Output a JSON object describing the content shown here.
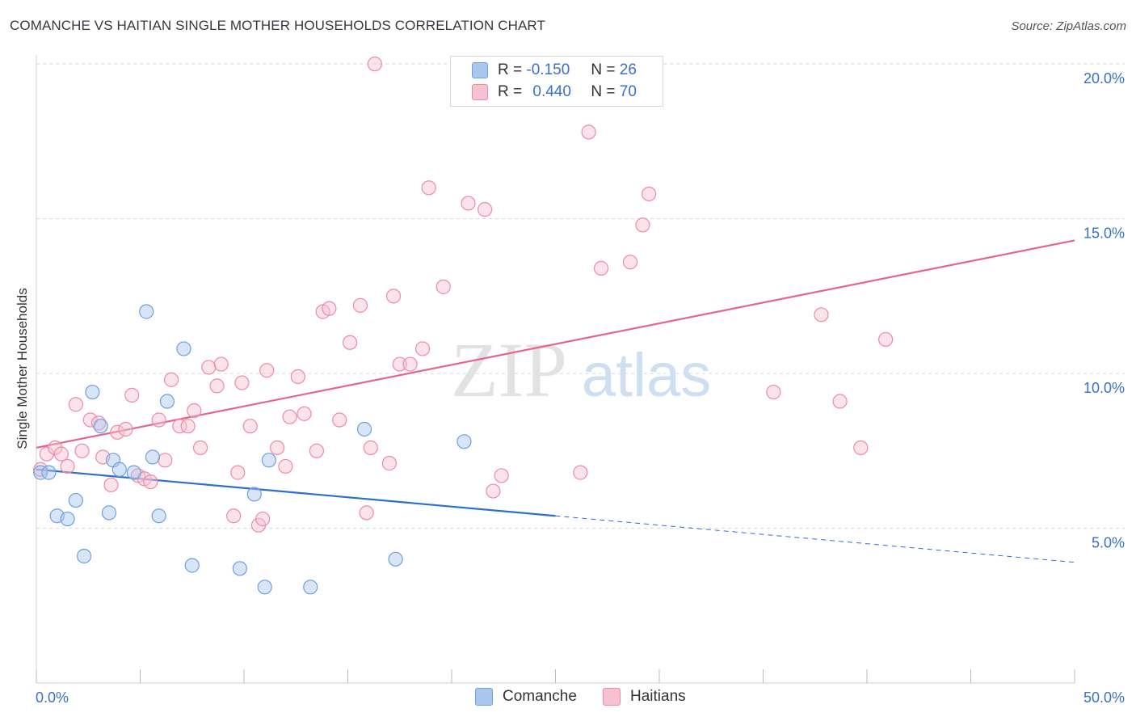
{
  "title": "COMANCHE VS HAITIAN SINGLE MOTHER HOUSEHOLDS CORRELATION CHART",
  "source": "Source: ZipAtlas.com",
  "watermark": {
    "zip": "ZIP",
    "atlas": "atlas"
  },
  "legend": {
    "r_label": "R =",
    "n_label": "N =",
    "comanche": {
      "r": "-0.150",
      "n": "26"
    },
    "haitians": {
      "r": "0.440",
      "n": "70"
    }
  },
  "colors": {
    "comanche": "#6e9fe0",
    "comanche_fill": "#a9c6ee",
    "comanche_line": "#2b6fcf",
    "haitians": "#ee8aa8",
    "haitians_fill": "#f6c1d1",
    "haitians_line": "#e26590",
    "axis_text": "#3a6fcf",
    "grid": "#d9d9d9"
  },
  "chart_data": {
    "type": "scatter",
    "title": "COMANCHE VS HAITIAN SINGLE MOTHER HOUSEHOLDS CORRELATION CHART",
    "xlabel": "",
    "ylabel": "Single Mother Households",
    "xlim": [
      0,
      50
    ],
    "ylim": [
      0,
      20.5
    ],
    "x_tick_labels": [
      "0.0%",
      "50.0%"
    ],
    "y_ticks": [
      5,
      10,
      15,
      20
    ],
    "y_tick_labels": [
      "5.0%",
      "10.0%",
      "15.0%",
      "20.0%"
    ],
    "legend_position": "top-center",
    "series": [
      {
        "name": "Comanche",
        "r": -0.15,
        "n": 26,
        "points": [
          [
            0.2,
            6.8
          ],
          [
            0.6,
            6.8
          ],
          [
            1.0,
            5.4
          ],
          [
            1.5,
            5.3
          ],
          [
            1.9,
            5.9
          ],
          [
            2.3,
            4.1
          ],
          [
            2.7,
            9.4
          ],
          [
            3.1,
            8.3
          ],
          [
            3.7,
            7.2
          ],
          [
            4.0,
            6.9
          ],
          [
            3.5,
            5.5
          ],
          [
            4.7,
            6.8
          ],
          [
            5.3,
            12.0
          ],
          [
            5.6,
            7.3
          ],
          [
            5.9,
            5.4
          ],
          [
            6.3,
            9.1
          ],
          [
            7.1,
            10.8
          ],
          [
            7.5,
            3.8
          ],
          [
            9.8,
            3.7
          ],
          [
            10.5,
            6.1
          ],
          [
            11.2,
            7.2
          ],
          [
            11.0,
            3.1
          ],
          [
            13.2,
            3.1
          ],
          [
            15.8,
            8.2
          ],
          [
            17.3,
            4.0
          ],
          [
            20.6,
            7.8
          ]
        ],
        "trend": {
          "x_start": 0,
          "y_start": 6.9,
          "x_solid_end": 25,
          "y_solid_end": 5.4,
          "x_end": 50,
          "y_end": 3.9
        }
      },
      {
        "name": "Haitians",
        "r": 0.44,
        "n": 70,
        "points": [
          [
            0.2,
            6.9
          ],
          [
            0.5,
            7.4
          ],
          [
            0.9,
            7.6
          ],
          [
            1.2,
            7.4
          ],
          [
            1.5,
            7.0
          ],
          [
            1.9,
            9.0
          ],
          [
            2.2,
            7.5
          ],
          [
            2.6,
            8.5
          ],
          [
            3.0,
            8.4
          ],
          [
            3.2,
            7.3
          ],
          [
            3.6,
            6.4
          ],
          [
            3.9,
            8.1
          ],
          [
            4.3,
            8.2
          ],
          [
            4.6,
            9.3
          ],
          [
            4.9,
            6.7
          ],
          [
            5.2,
            6.6
          ],
          [
            5.5,
            6.5
          ],
          [
            5.9,
            8.5
          ],
          [
            6.2,
            7.2
          ],
          [
            6.5,
            9.8
          ],
          [
            6.9,
            8.3
          ],
          [
            7.3,
            8.3
          ],
          [
            7.6,
            8.8
          ],
          [
            7.9,
            7.6
          ],
          [
            8.3,
            10.2
          ],
          [
            8.7,
            9.6
          ],
          [
            8.9,
            10.3
          ],
          [
            9.5,
            5.4
          ],
          [
            9.7,
            6.8
          ],
          [
            9.9,
            9.7
          ],
          [
            10.3,
            8.3
          ],
          [
            10.7,
            5.1
          ],
          [
            10.9,
            5.3
          ],
          [
            11.1,
            10.1
          ],
          [
            11.6,
            7.6
          ],
          [
            12.0,
            7.0
          ],
          [
            12.2,
            8.6
          ],
          [
            12.6,
            9.9
          ],
          [
            12.9,
            8.7
          ],
          [
            13.5,
            7.5
          ],
          [
            13.8,
            12.0
          ],
          [
            14.1,
            12.1
          ],
          [
            14.6,
            8.5
          ],
          [
            15.1,
            11.0
          ],
          [
            15.6,
            12.2
          ],
          [
            15.9,
            5.5
          ],
          [
            16.1,
            7.6
          ],
          [
            16.3,
            20.0
          ],
          [
            17.0,
            7.1
          ],
          [
            17.2,
            12.5
          ],
          [
            17.5,
            10.3
          ],
          [
            18.0,
            10.3
          ],
          [
            18.6,
            10.8
          ],
          [
            18.9,
            16.0
          ],
          [
            19.6,
            12.8
          ],
          [
            20.8,
            15.5
          ],
          [
            21.6,
            15.3
          ],
          [
            22.0,
            6.2
          ],
          [
            22.4,
            6.7
          ],
          [
            26.2,
            6.8
          ],
          [
            26.6,
            17.8
          ],
          [
            27.2,
            13.4
          ],
          [
            28.6,
            13.6
          ],
          [
            29.2,
            14.8
          ],
          [
            29.5,
            15.8
          ],
          [
            35.5,
            9.4
          ],
          [
            37.8,
            11.9
          ],
          [
            38.7,
            9.1
          ],
          [
            39.7,
            7.6
          ],
          [
            40.9,
            11.1
          ]
        ],
        "trend": {
          "x_start": 0,
          "y_start": 7.6,
          "x_end": 50,
          "y_end": 14.3
        }
      }
    ]
  }
}
